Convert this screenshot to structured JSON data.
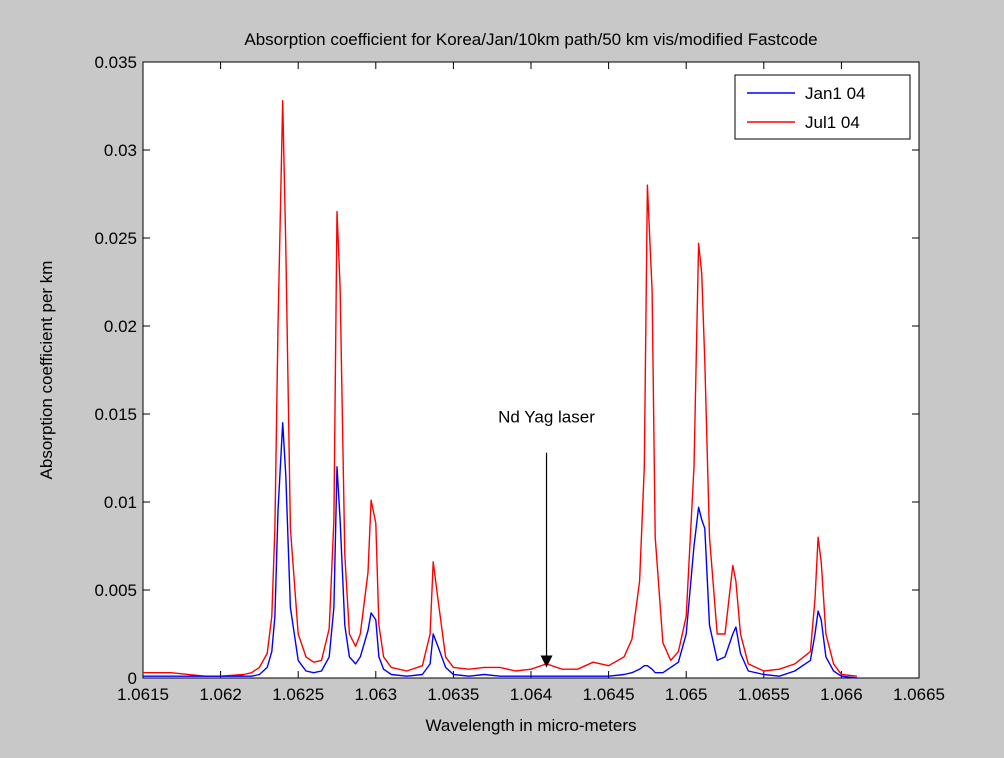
{
  "chart_data": {
    "type": "line",
    "title": "Absorption coefficient for Korea/Jan/10km path/50 km vis/modified Fastcode",
    "xlabel": "Wavelength in micro-meters",
    "ylabel": "Absorption coefficient per km",
    "xlim": [
      1.0615,
      1.0665
    ],
    "ylim": [
      0,
      0.035
    ],
    "xticks": [
      1.0615,
      1.062,
      1.0625,
      1.063,
      1.0635,
      1.064,
      1.0645,
      1.065,
      1.0655,
      1.066,
      1.0665
    ],
    "xtick_labels": [
      "1.0615",
      "1.062",
      "1.0625",
      "1.063",
      "1.0635",
      "1.064",
      "1.0645",
      "1.065",
      "1.0655",
      "1.066",
      "1.0665"
    ],
    "yticks": [
      0,
      0.005,
      0.01,
      0.015,
      0.02,
      0.025,
      0.03,
      0.035
    ],
    "ytick_labels": [
      "0",
      "0.005",
      "0.01",
      "0.015",
      "0.02",
      "0.025",
      "0.03",
      "0.035"
    ],
    "grid": false,
    "legend_position": "top-right",
    "series": [
      {
        "name": "Jan1 04",
        "color": "#0000ff",
        "x": [
          1.0615,
          1.06168,
          1.0619,
          1.062,
          1.06215,
          1.0622,
          1.06225,
          1.0623,
          1.06233,
          1.06235,
          1.06237,
          1.0624,
          1.06242,
          1.06245,
          1.0625,
          1.06255,
          1.0626,
          1.06265,
          1.0627,
          1.06273,
          1.06275,
          1.06277,
          1.0628,
          1.06283,
          1.06287,
          1.0629,
          1.06295,
          1.06297,
          1.063,
          1.06302,
          1.06305,
          1.0631,
          1.0632,
          1.0633,
          1.06335,
          1.06337,
          1.0634,
          1.06345,
          1.0635,
          1.0636,
          1.0637,
          1.0638,
          1.0639,
          1.064,
          1.0641,
          1.0642,
          1.0643,
          1.0644,
          1.0645,
          1.0646,
          1.06465,
          1.0647,
          1.06473,
          1.06475,
          1.06478,
          1.0648,
          1.06485,
          1.0649,
          1.06495,
          1.065,
          1.06505,
          1.06508,
          1.0651,
          1.06512,
          1.06515,
          1.0652,
          1.06525,
          1.0653,
          1.06532,
          1.06535,
          1.0654,
          1.0655,
          1.0656,
          1.0657,
          1.0658,
          1.06583,
          1.06585,
          1.06587,
          1.0659,
          1.06595,
          1.066,
          1.0661
        ],
        "y": [
          0.0001,
          0.0001,
          0.0001,
          0.0001,
          0.0001,
          0.0001,
          0.0002,
          0.0006,
          0.0015,
          0.0035,
          0.0095,
          0.0145,
          0.0115,
          0.004,
          0.001,
          0.0004,
          0.0003,
          0.0004,
          0.0012,
          0.004,
          0.012,
          0.009,
          0.003,
          0.0012,
          0.0008,
          0.0012,
          0.0027,
          0.0037,
          0.0033,
          0.0012,
          0.0005,
          0.0002,
          0.0001,
          0.0002,
          0.0008,
          0.0025,
          0.0018,
          0.0006,
          0.0002,
          0.0001,
          0.0002,
          0.0001,
          0.0001,
          0.0001,
          0.0001,
          0.0001,
          0.0001,
          0.0001,
          0.0001,
          0.0002,
          0.0003,
          0.0005,
          0.0007,
          0.0007,
          0.0005,
          0.0003,
          0.0003,
          0.0006,
          0.0009,
          0.0025,
          0.0075,
          0.0097,
          0.009,
          0.0085,
          0.003,
          0.001,
          0.0012,
          0.0025,
          0.0029,
          0.0014,
          0.0004,
          0.0002,
          0.0001,
          0.0004,
          0.001,
          0.0025,
          0.0038,
          0.0033,
          0.0012,
          0.0004,
          0.0001,
          0.0
        ]
      },
      {
        "name": "Jul1 04",
        "color": "#ff0000",
        "x": [
          1.0615,
          1.06168,
          1.0619,
          1.062,
          1.06215,
          1.0622,
          1.06225,
          1.0623,
          1.06233,
          1.06235,
          1.06237,
          1.0624,
          1.06242,
          1.06245,
          1.0625,
          1.06255,
          1.0626,
          1.06265,
          1.0627,
          1.06273,
          1.06275,
          1.06277,
          1.0628,
          1.06283,
          1.06287,
          1.0629,
          1.06295,
          1.06297,
          1.063,
          1.06302,
          1.06305,
          1.0631,
          1.0632,
          1.0633,
          1.06335,
          1.06337,
          1.0634,
          1.06345,
          1.0635,
          1.0636,
          1.0637,
          1.0638,
          1.0639,
          1.064,
          1.0641,
          1.0642,
          1.0643,
          1.0644,
          1.0645,
          1.0646,
          1.06465,
          1.0647,
          1.06473,
          1.06475,
          1.06478,
          1.0648,
          1.06485,
          1.0649,
          1.06495,
          1.065,
          1.06505,
          1.06508,
          1.0651,
          1.06512,
          1.06515,
          1.0652,
          1.06525,
          1.0653,
          1.06532,
          1.06535,
          1.0654,
          1.0655,
          1.0656,
          1.0657,
          1.0658,
          1.06583,
          1.06585,
          1.06587,
          1.0659,
          1.06595,
          1.066,
          1.0661
        ],
        "y": [
          0.0003,
          0.0003,
          0.0001,
          0.0001,
          0.0002,
          0.0003,
          0.0006,
          0.0014,
          0.0035,
          0.0085,
          0.02,
          0.0328,
          0.0245,
          0.0085,
          0.0025,
          0.0012,
          0.0009,
          0.001,
          0.0028,
          0.009,
          0.0265,
          0.0222,
          0.007,
          0.0025,
          0.0018,
          0.0025,
          0.006,
          0.0101,
          0.0088,
          0.003,
          0.0012,
          0.0006,
          0.0004,
          0.0007,
          0.0025,
          0.0066,
          0.0045,
          0.0012,
          0.0006,
          0.0005,
          0.0006,
          0.0006,
          0.0004,
          0.0005,
          0.0008,
          0.0005,
          0.0005,
          0.0009,
          0.0007,
          0.0012,
          0.0022,
          0.0055,
          0.012,
          0.028,
          0.022,
          0.008,
          0.002,
          0.001,
          0.0015,
          0.0035,
          0.012,
          0.0247,
          0.023,
          0.018,
          0.008,
          0.0025,
          0.0025,
          0.0064,
          0.0055,
          0.0025,
          0.0008,
          0.0004,
          0.0005,
          0.0008,
          0.0015,
          0.0045,
          0.008,
          0.0066,
          0.0025,
          0.0008,
          0.0002,
          0.0001
        ]
      }
    ],
    "annotations": [
      {
        "text": "Nd Yag laser",
        "arrow_x": 1.0641,
        "arrow_y_start": 0.0128,
        "arrow_y_end": 0.0006
      }
    ]
  }
}
